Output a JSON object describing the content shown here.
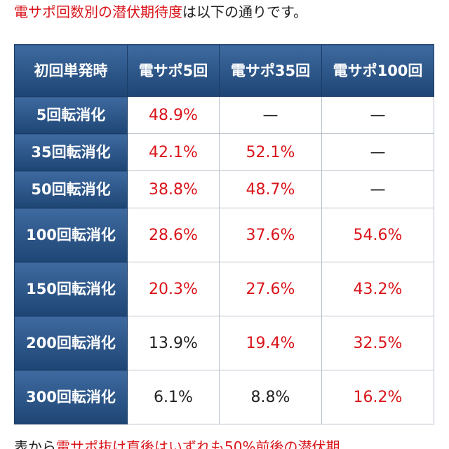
{
  "intro": {
    "highlight": "電サポ回数別の潜伏期待度",
    "rest": "は以下の通りです。"
  },
  "table": {
    "corner": "初回単発時",
    "columns": [
      "電サポ5回",
      "電サポ35回",
      "電サポ100回"
    ],
    "rows": [
      {
        "label": "5回転消化",
        "cells": [
          {
            "text": "48.9%",
            "red": true
          },
          {
            "text": "—",
            "red": false
          },
          {
            "text": "—",
            "red": false
          }
        ]
      },
      {
        "label": "35回転消化",
        "cells": [
          {
            "text": "42.1%",
            "red": true
          },
          {
            "text": "52.1%",
            "red": true
          },
          {
            "text": "—",
            "red": false
          }
        ]
      },
      {
        "label": "50回転消化",
        "cells": [
          {
            "text": "38.8%",
            "red": true
          },
          {
            "text": "48.7%",
            "red": true
          },
          {
            "text": "—",
            "red": false
          }
        ]
      },
      {
        "label": "100回転消化",
        "cells": [
          {
            "text": "28.6%",
            "red": true
          },
          {
            "text": "37.6%",
            "red": true
          },
          {
            "text": "54.6%",
            "red": true
          }
        ]
      },
      {
        "label": "150回転消化",
        "cells": [
          {
            "text": "20.3%",
            "red": true
          },
          {
            "text": "27.6%",
            "red": true
          },
          {
            "text": "43.2%",
            "red": true
          }
        ]
      },
      {
        "label": "200回転消化",
        "cells": [
          {
            "text": "13.9%",
            "red": false
          },
          {
            "text": "19.4%",
            "red": true
          },
          {
            "text": "32.5%",
            "red": true
          }
        ]
      },
      {
        "label": "300回転消化",
        "cells": [
          {
            "text": "6.1%",
            "red": false
          },
          {
            "text": "8.8%",
            "red": false
          },
          {
            "text": "16.2%",
            "red": true
          }
        ]
      }
    ]
  },
  "footer": {
    "lead": "表から",
    "highlight": "電サポ抜け直後はいずれも50%前後の潜伏期"
  },
  "colors": {
    "highlight": "#d9141a",
    "header": "#2a5284"
  }
}
